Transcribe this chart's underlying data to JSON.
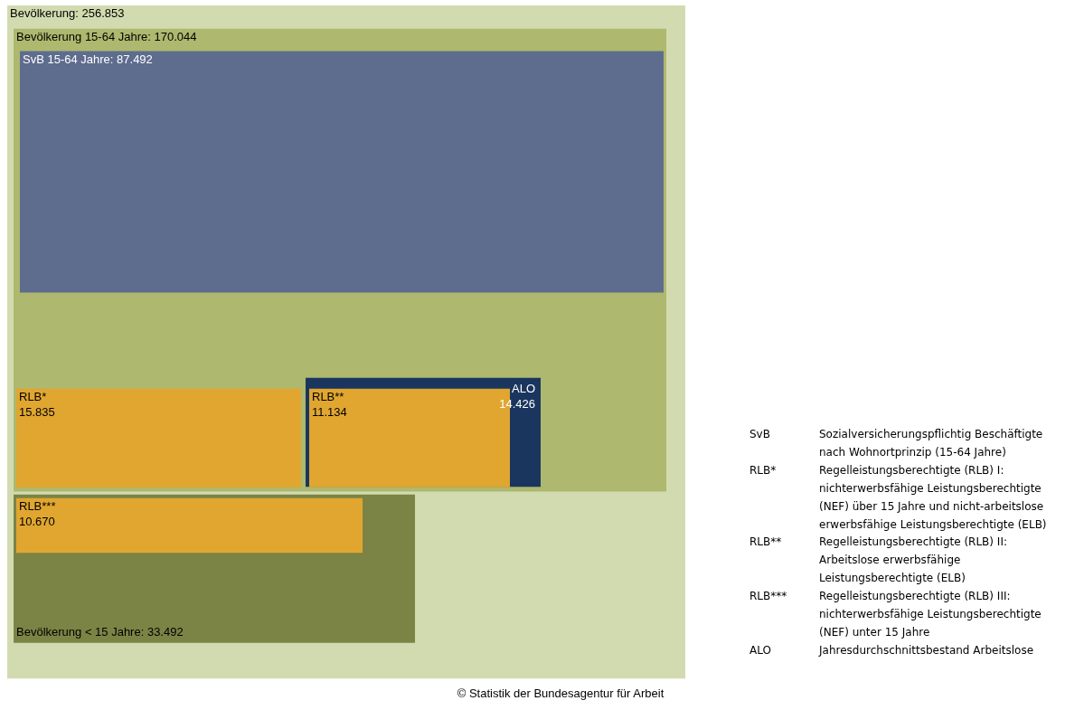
{
  "chart_data": {
    "type": "other",
    "categories": [
      "Bevölkerung",
      "Bevölkerung 15-64 Jahre",
      "SvB 15-64 Jahre",
      "RLB*",
      "ALO",
      "RLB**",
      "Bevölkerung < 15 Jahre",
      "RLB***"
    ],
    "values": [
      256853,
      170044,
      87492,
      15835,
      14426,
      11134,
      33492,
      10670
    ],
    "value_labels": [
      ": 256.853",
      ": 170.044",
      ": 87.492",
      "15.835",
      "14.426",
      "11.134",
      ": 33.492",
      "10.670"
    ],
    "colors": [
      "#d2dbb0",
      "#aeb86e",
      "#5e6c8e",
      "#e0a630",
      "#1a365e",
      "#e0a630",
      "#7b8444",
      "#e0a630"
    ],
    "annotations": [
      "SvB",
      "Sozialversicherungspflichtig Beschäftigte nach Wohnortprinzip (15-64 Jahre)",
      "RLB*",
      "Regelleistungsberechtigte (RLB) I: nichterwerbsfähige Leistungsberechtigte (NEF) über 15 Jahre und nicht-arbeitslose erwerbsfähige Leistungsberechtigte (ELB)",
      "RLB**",
      "Regelleistungsberechtigte (RLB) II: Arbeitslose erwerbsfähige Leistungsberechtigte (ELB)",
      "RLB***",
      "Regelleistungsberechtigte (RLB) III: nichterwerbsfähige Leistungsberechtigte (NEF) unter 15 Jahre",
      "ALO",
      "Jahresdurchschnittsbestand Arbeitslose",
      "© Statistik der Bundesagentur für Arbeit"
    ]
  }
}
